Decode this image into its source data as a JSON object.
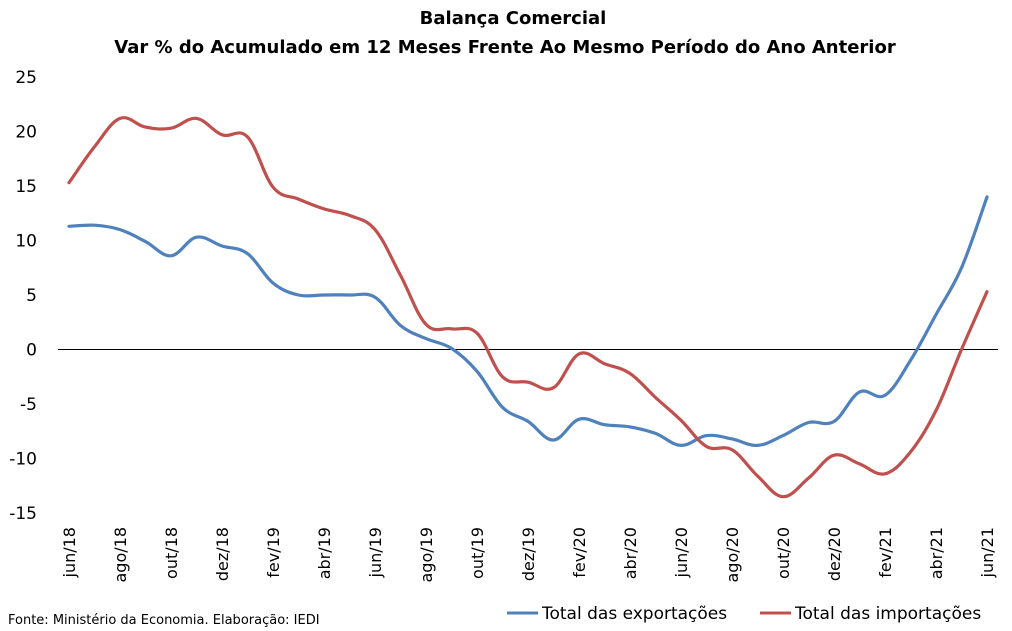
{
  "chart_data": {
    "type": "line",
    "title": "Balança Comercial",
    "subtitle": "Var % do Acumulado em 12 Meses Frente Ao Mesmo Período do Ano Anterior",
    "source": "Fonte: Ministério da Economia. Elaboração: IEDI",
    "ylim": [
      -15,
      25
    ],
    "yticks": [
      "25",
      "20",
      "15",
      "10",
      "5",
      "0",
      "-5",
      "-10",
      "-15"
    ],
    "ytick_values": [
      25,
      20,
      15,
      10,
      5,
      0,
      -5,
      -10,
      -15
    ],
    "x_labels": [
      "jun/18",
      "ago/18",
      "out/18",
      "dez/18",
      "fev/19",
      "abr/19",
      "jun/19",
      "ago/19",
      "out/19",
      "dez/19",
      "fev/20",
      "abr/20",
      "jun/20",
      "ago/20",
      "out/20",
      "dez/20",
      "fev/21",
      "abr/21",
      "jun/21"
    ],
    "x_label_months": [
      0,
      2,
      4,
      6,
      8,
      10,
      12,
      14,
      16,
      18,
      20,
      22,
      24,
      26,
      28,
      30,
      32,
      34,
      36
    ],
    "months": [
      "jun/18",
      "jul/18",
      "ago/18",
      "set/18",
      "out/18",
      "nov/18",
      "dez/18",
      "jan/19",
      "fev/19",
      "mar/19",
      "abr/19",
      "mai/19",
      "jun/19",
      "jul/19",
      "ago/19",
      "set/19",
      "out/19",
      "nov/19",
      "dez/19",
      "jan/20",
      "fev/20",
      "mar/20",
      "abr/20",
      "mai/20",
      "jun/20",
      "jul/20",
      "ago/20",
      "set/20",
      "out/20",
      "nov/20",
      "dez/20",
      "jan/21",
      "fev/21",
      "mar/21",
      "abr/21",
      "mai/21",
      "jun/21"
    ],
    "series": [
      {
        "name": "Total das exportações",
        "color": "#4F81BD",
        "values": [
          11.3,
          11.4,
          11.0,
          9.9,
          8.6,
          10.3,
          9.5,
          8.8,
          6.1,
          5.0,
          5.0,
          5.0,
          4.8,
          2.2,
          1.0,
          0.1,
          -2.0,
          -5.3,
          -6.6,
          -8.3,
          -6.4,
          -6.9,
          -7.1,
          -7.7,
          -8.8,
          -7.9,
          -8.2,
          -8.8,
          -7.9,
          -6.7,
          -6.6,
          -3.9,
          -4.2,
          -1.0,
          3.2,
          7.5,
          14.0
        ]
      },
      {
        "name": "Total das importações",
        "color": "#C0504D",
        "values": [
          15.3,
          18.6,
          21.2,
          20.4,
          20.3,
          21.2,
          19.7,
          19.5,
          14.9,
          13.8,
          12.9,
          12.3,
          11.0,
          6.8,
          2.3,
          1.9,
          1.5,
          -2.5,
          -3.0,
          -3.5,
          -0.4,
          -1.3,
          -2.2,
          -4.4,
          -6.5,
          -8.9,
          -9.2,
          -11.6,
          -13.5,
          -11.8,
          -9.7,
          -10.5,
          -11.4,
          -9.4,
          -5.6,
          0.0,
          5.3
        ]
      }
    ]
  }
}
